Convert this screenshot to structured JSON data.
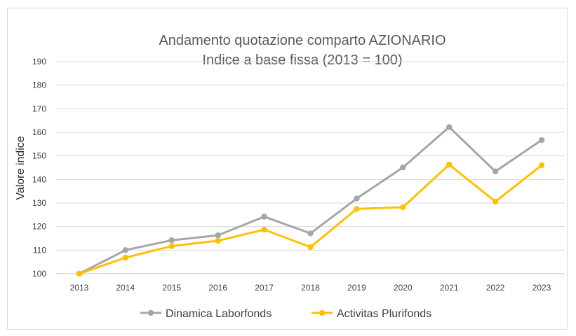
{
  "chart_data": {
    "type": "line",
    "title": "Andamento quotazione comparto AZIONARIO",
    "subtitle": "Indice a base fissa (2013 = 100)",
    "xlabel": "",
    "ylabel": "Valore indice",
    "categories": [
      "2013",
      "2014",
      "2015",
      "2016",
      "2017",
      "2018",
      "2019",
      "2020",
      "2021",
      "2022",
      "2023"
    ],
    "ylim": [
      100,
      190
    ],
    "yticks": [
      100,
      110,
      120,
      130,
      140,
      150,
      160,
      170,
      180,
      190
    ],
    "grid": true,
    "legend_position": "bottom",
    "series": [
      {
        "name": "Dinamica Laborfonds",
        "color": "#a6a6a6",
        "values": [
          100,
          110,
          114.2,
          116.3,
          124.2,
          117.1,
          131.9,
          145.1,
          162.2,
          143.4,
          156.7
        ]
      },
      {
        "name": "Activitas Plurifonds",
        "color": "#ffc000",
        "values": [
          100,
          106.8,
          111.7,
          114,
          118.7,
          111.3,
          127.5,
          128.2,
          146.3,
          130.6,
          146
        ]
      }
    ]
  }
}
